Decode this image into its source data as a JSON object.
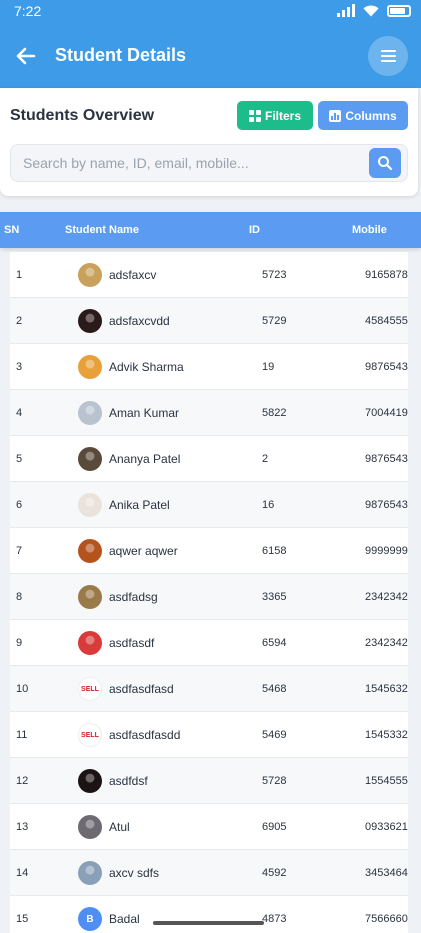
{
  "status_bar": {
    "time": "7:22"
  },
  "app_bar": {
    "title": "Student Details"
  },
  "overview": {
    "title": "Students Overview",
    "filters_label": "Filters",
    "columns_label": "Columns"
  },
  "search": {
    "placeholder": "Search by name, ID, email, mobile..."
  },
  "table": {
    "headers": {
      "sn": "SN",
      "name": "Student Name",
      "id": "ID",
      "mobile": "Mobile"
    },
    "rows": [
      {
        "sn": "1",
        "name": "adsfaxcv",
        "id": "5723",
        "mobile": "9165878",
        "avatar": "photo",
        "color": "#c8a25c"
      },
      {
        "sn": "2",
        "name": "adsfaxcvdd",
        "id": "5729",
        "mobile": "4584555",
        "avatar": "photo",
        "color": "#2a1a1a"
      },
      {
        "sn": "3",
        "name": "Advik Sharma",
        "id": "19",
        "mobile": "9876543",
        "avatar": "photo",
        "color": "#e8a13a"
      },
      {
        "sn": "4",
        "name": "Aman Kumar",
        "id": "5822",
        "mobile": "7004419",
        "avatar": "photo",
        "color": "#b9c3cf"
      },
      {
        "sn": "5",
        "name": "Ananya Patel",
        "id": "2",
        "mobile": "9876543",
        "avatar": "photo",
        "color": "#5a4a3a"
      },
      {
        "sn": "6",
        "name": "Anika Patel",
        "id": "16",
        "mobile": "9876543",
        "avatar": "photo",
        "color": "#e9e3dc"
      },
      {
        "sn": "7",
        "name": "aqwer aqwer",
        "id": "6158",
        "mobile": "9999999",
        "avatar": "photo",
        "color": "#b3541e"
      },
      {
        "sn": "8",
        "name": "asdfadsg",
        "id": "3365",
        "mobile": "2342342",
        "avatar": "photo",
        "color": "#9b7a4a"
      },
      {
        "sn": "9",
        "name": "asdfasdf",
        "id": "6594",
        "mobile": "2342342",
        "avatar": "photo",
        "color": "#d93a3a"
      },
      {
        "sn": "10",
        "name": "asdfasdfasd",
        "id": "5468",
        "mobile": "1545632",
        "avatar": "sell",
        "color": "#ffffff"
      },
      {
        "sn": "11",
        "name": "asdfasdfasdd",
        "id": "5469",
        "mobile": "1545332",
        "avatar": "sell",
        "color": "#ffffff"
      },
      {
        "sn": "12",
        "name": "asdfdsf",
        "id": "5728",
        "mobile": "1554555",
        "avatar": "photo",
        "color": "#1c1414"
      },
      {
        "sn": "13",
        "name": "Atul",
        "id": "6905",
        "mobile": "0933621",
        "avatar": "photo",
        "color": "#6d6a72"
      },
      {
        "sn": "14",
        "name": "axcv sdfs",
        "id": "4592",
        "mobile": "3453464",
        "avatar": "photo",
        "color": "#8aa0b8"
      },
      {
        "sn": "15",
        "name": "Badal",
        "id": "4873",
        "mobile": "7566660",
        "avatar": "initial",
        "initial": "B",
        "color": "#4f8ef2"
      }
    ]
  },
  "sell_badge": "SELL"
}
